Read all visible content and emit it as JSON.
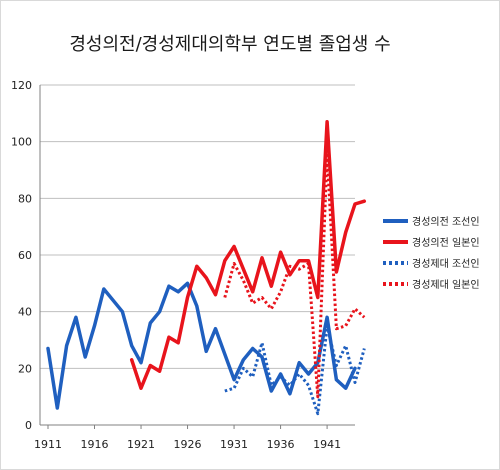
{
  "chart_data": {
    "type": "line",
    "title": "경성의전/경성제대의학부 연도별 졸업생 수",
    "xlabel": "",
    "ylabel": "",
    "xlim": [
      1911,
      1944
    ],
    "ylim": [
      0,
      120
    ],
    "y_ticks": [
      0,
      20,
      40,
      60,
      80,
      100,
      120
    ],
    "x_ticks": [
      1911,
      1916,
      1921,
      1926,
      1931,
      1936,
      1941
    ],
    "grid": "horizontal",
    "legend_position": "right",
    "series": [
      {
        "name": "경성의전 조선인",
        "color": "#1f5fbf",
        "style": "solid",
        "x": [
          1911,
          1912,
          1913,
          1914,
          1915,
          1916,
          1917,
          1918,
          1919,
          1920,
          1921,
          1922,
          1923,
          1924,
          1925,
          1926,
          1927,
          1928,
          1929,
          1930,
          1931,
          1932,
          1933,
          1934,
          1935,
          1936,
          1937,
          1938,
          1939,
          1940,
          1941,
          1942,
          1943,
          1944
        ],
        "values": [
          27,
          6,
          28,
          38,
          24,
          35,
          48,
          44,
          40,
          28,
          22,
          36,
          40,
          49,
          47,
          50,
          42,
          26,
          34,
          25,
          16,
          23,
          27,
          24,
          12,
          18,
          11,
          22,
          18,
          22,
          38,
          16,
          13,
          20
        ]
      },
      {
        "name": "경성의전 일본인",
        "color": "#e8141c",
        "style": "solid",
        "x": [
          1920,
          1921,
          1922,
          1923,
          1924,
          1925,
          1926,
          1927,
          1928,
          1929,
          1930,
          1931,
          1932,
          1933,
          1934,
          1935,
          1936,
          1937,
          1938,
          1939,
          1940,
          1941,
          1942,
          1943,
          1944,
          1945
        ],
        "values": [
          23,
          13,
          21,
          19,
          31,
          29,
          45,
          56,
          52,
          46,
          58,
          63,
          55,
          47,
          59,
          49,
          61,
          53,
          58,
          58,
          45,
          107,
          54,
          68,
          78,
          79
        ]
      },
      {
        "name": "경성제대 조선인",
        "color": "#1f5fbf",
        "style": "dotted",
        "x": [
          1930,
          1931,
          1932,
          1933,
          1934,
          1935,
          1936,
          1937,
          1938,
          1939,
          1940,
          1941,
          1942,
          1943,
          1944,
          1945
        ],
        "values": [
          12,
          13,
          20,
          17,
          29,
          14,
          17,
          14,
          18,
          14,
          4,
          35,
          21,
          28,
          15,
          27
        ]
      },
      {
        "name": "경성제대 일본인",
        "color": "#e8141c",
        "style": "dotted",
        "x": [
          1930,
          1931,
          1932,
          1933,
          1934,
          1935,
          1936,
          1937,
          1938,
          1939,
          1940,
          1941,
          1942,
          1943,
          1944,
          1945
        ],
        "values": [
          45,
          57,
          51,
          43,
          45,
          41,
          47,
          56,
          55,
          57,
          10,
          96,
          34,
          35,
          41,
          38
        ]
      }
    ]
  }
}
